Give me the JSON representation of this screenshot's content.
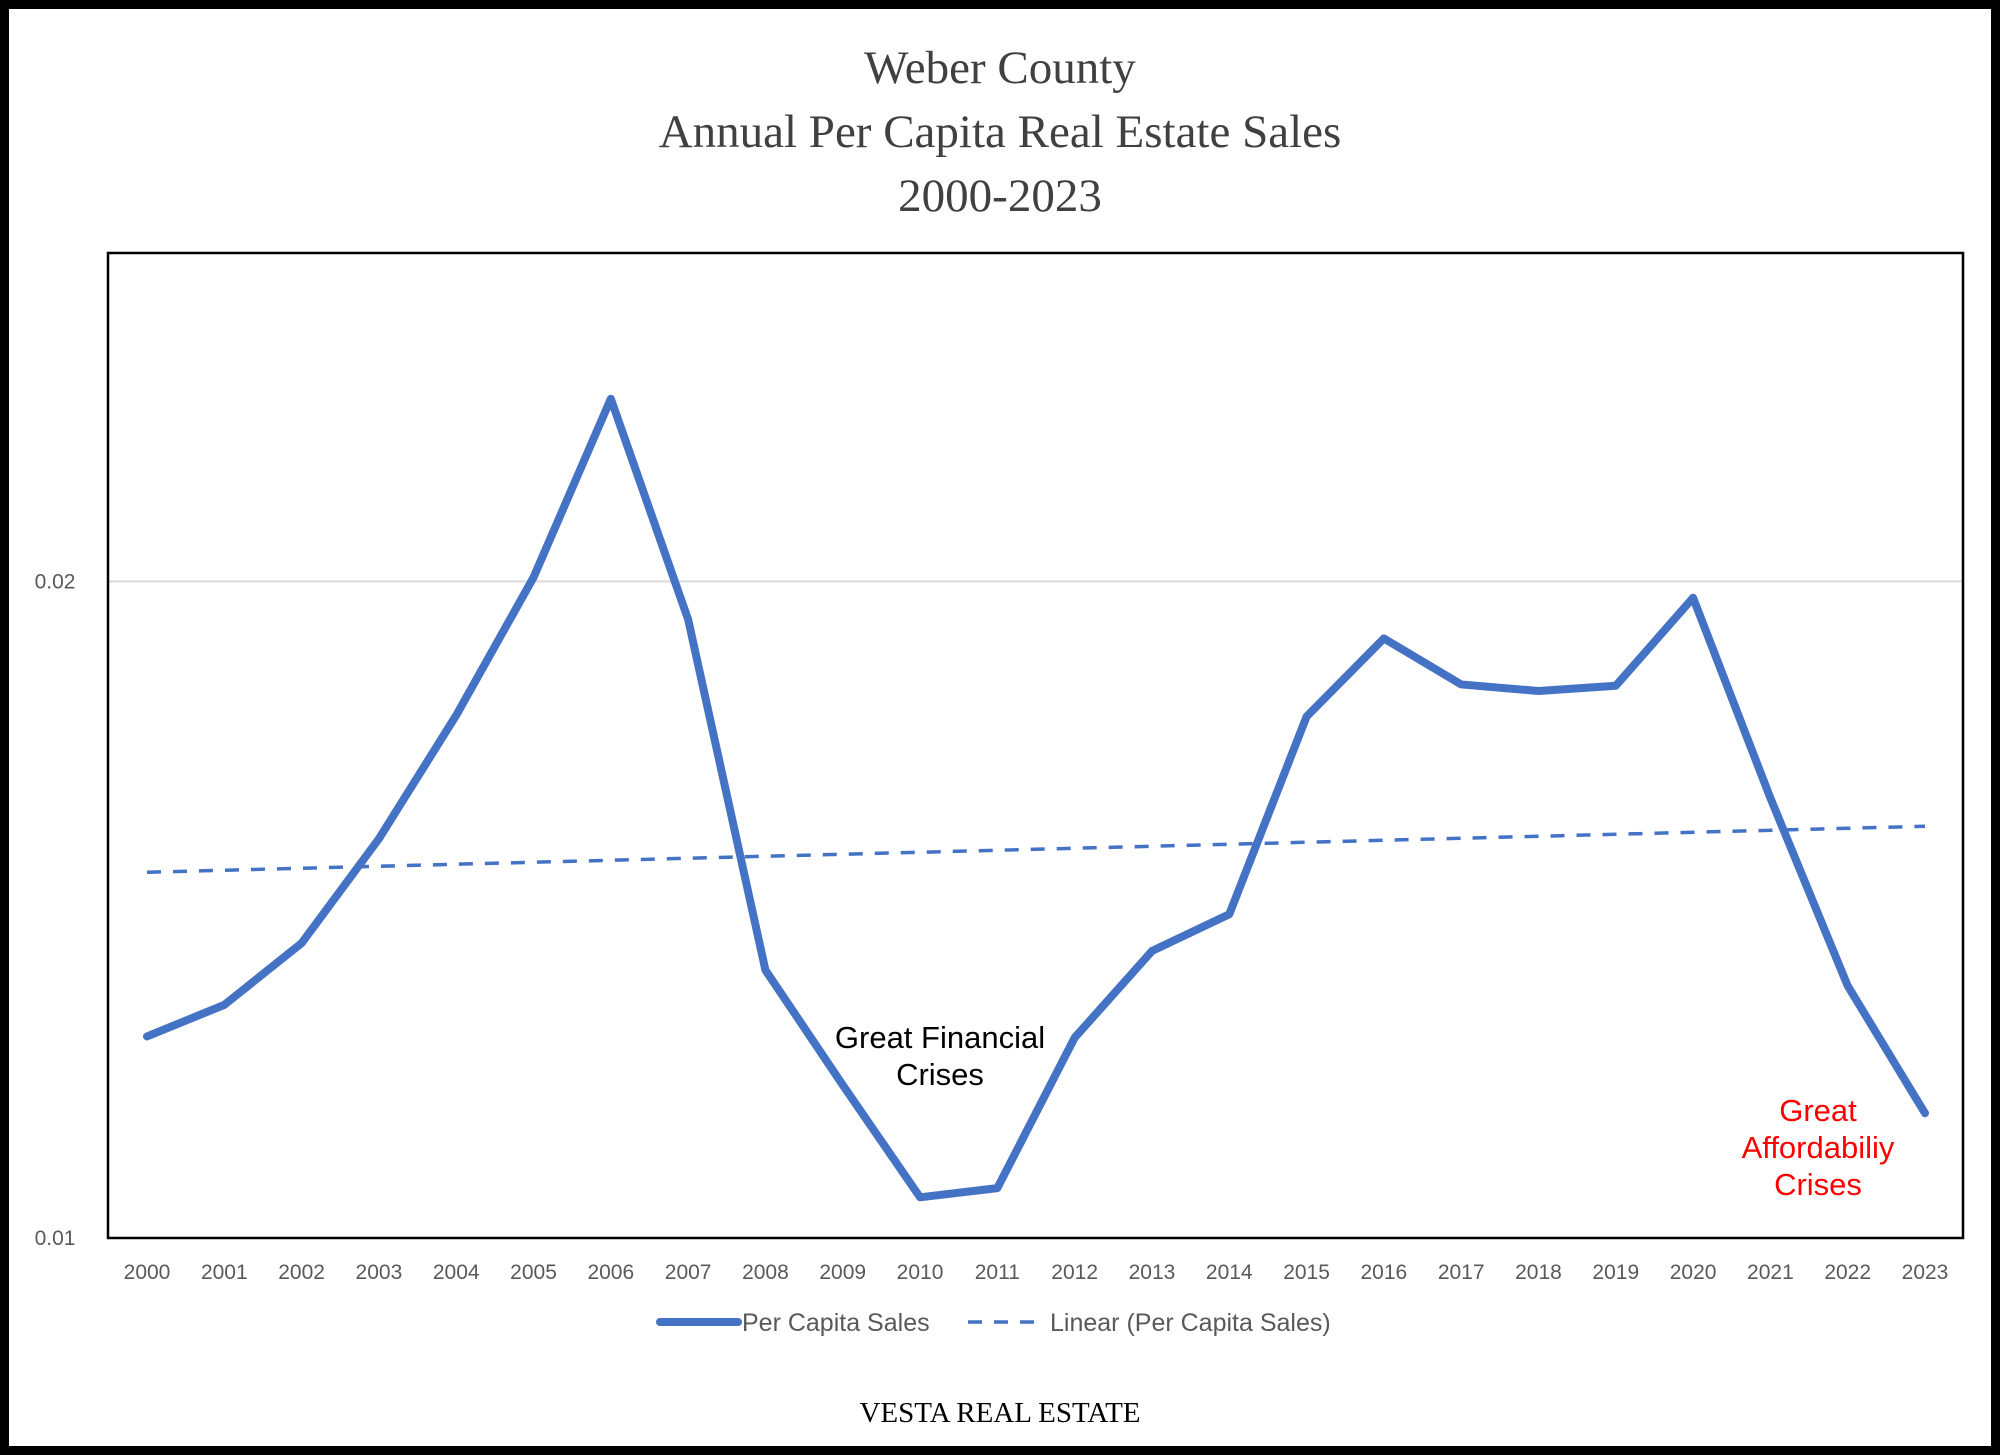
{
  "chart_data": {
    "type": "line",
    "title": [
      "Weber County",
      "Annual Per Capita Real Estate Sales",
      "2000-2023"
    ],
    "xlabel": "",
    "ylabel": "",
    "categories": [
      "2000",
      "2001",
      "2002",
      "2003",
      "2004",
      "2005",
      "2006",
      "2007",
      "2008",
      "2009",
      "2010",
      "2011",
      "2012",
      "2013",
      "2014",
      "2015",
      "2016",
      "2017",
      "2018",
      "2019",
      "2020",
      "2021",
      "2022",
      "2023"
    ],
    "series": [
      {
        "name": "Per Capita Sales",
        "style": "solid",
        "color": "#4472C4",
        "values": [
          0.01307,
          0.01355,
          0.01449,
          0.01608,
          0.01796,
          0.02006,
          0.02278,
          0.01942,
          0.01408,
          0.01233,
          0.01062,
          0.01076,
          0.01305,
          0.01437,
          0.01493,
          0.01794,
          0.01913,
          0.01843,
          0.01833,
          0.01841,
          0.01975,
          0.0167,
          0.01384,
          0.0119
        ]
      },
      {
        "name": "Linear (Per Capita Sales)",
        "style": "dashed",
        "color": "#4472C4",
        "trendline_of": "Per Capita Sales",
        "start_value": 0.01557,
        "end_value": 0.01627
      }
    ],
    "ylim": [
      0.01,
      0.025
    ],
    "yticks": [
      0.01,
      0.02
    ],
    "ytick_labels": [
      "0.01",
      "0.02"
    ],
    "grid": true,
    "legend": "bottom",
    "annotations": [
      {
        "text": [
          "Great Financial",
          "Crises"
        ],
        "near": "2010",
        "color": "#000000"
      },
      {
        "text": [
          "Great",
          "Affordabiliy",
          "Crises"
        ],
        "near": "2022",
        "color": "#FF0000"
      }
    ],
    "footer": "VESTA REAL ESTATE"
  }
}
